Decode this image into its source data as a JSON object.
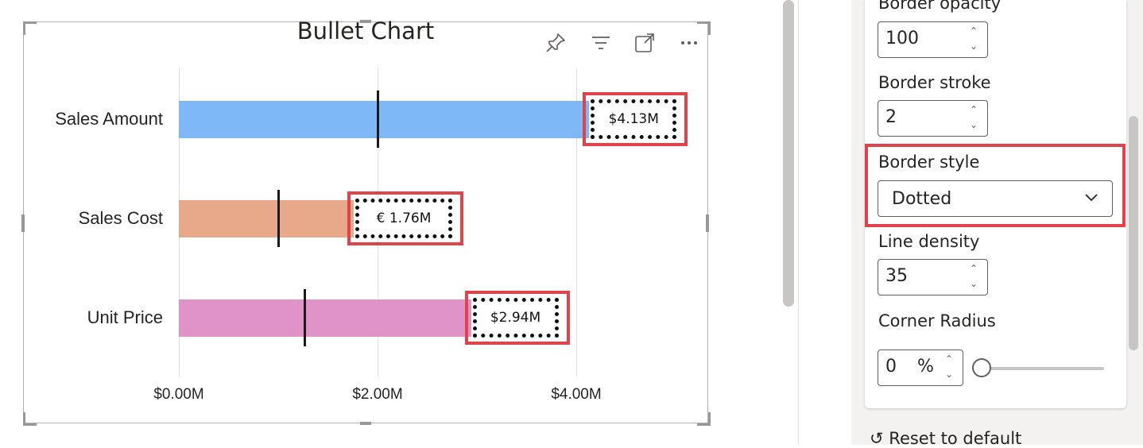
{
  "visual": {
    "title": "Bullet Chart",
    "header_icons": [
      "pin-icon",
      "filter-icon",
      "focus-mode-icon",
      "more-options-icon"
    ]
  },
  "chart_data": {
    "type": "bar",
    "orientation": "horizontal",
    "title": "Bullet Chart",
    "categories": [
      "Sales Amount",
      "Sales Cost",
      "Unit Price"
    ],
    "values": [
      4.13,
      1.76,
      2.94
    ],
    "targets": [
      2.0,
      1.0,
      1.26
    ],
    "data_labels": [
      "$4.13M",
      "€ 1.76M",
      "$2.94M"
    ],
    "colors": [
      "#7fb8f7",
      "#e8a98a",
      "#e093c6"
    ],
    "x_ticks": [
      "$0.00M",
      "$2.00M",
      "$4.00M"
    ],
    "xlim": [
      0,
      5.33
    ],
    "grid": true,
    "label_border_style": "dotted"
  },
  "format_pane": {
    "border_opacity": {
      "label": "Border opacity",
      "value": "100"
    },
    "border_stroke": {
      "label": "Border stroke",
      "value": "2"
    },
    "border_style": {
      "label": "Border style",
      "value": "Dotted"
    },
    "line_density": {
      "label": "Line density",
      "value": "35"
    },
    "corner_radius": {
      "label": "Corner Radius",
      "value": "0",
      "unit": "%",
      "slider_level": 0
    },
    "reset_label": "Reset to default"
  },
  "colors": {
    "highlight": "#e0434b",
    "accent_border": "#605e5c"
  }
}
